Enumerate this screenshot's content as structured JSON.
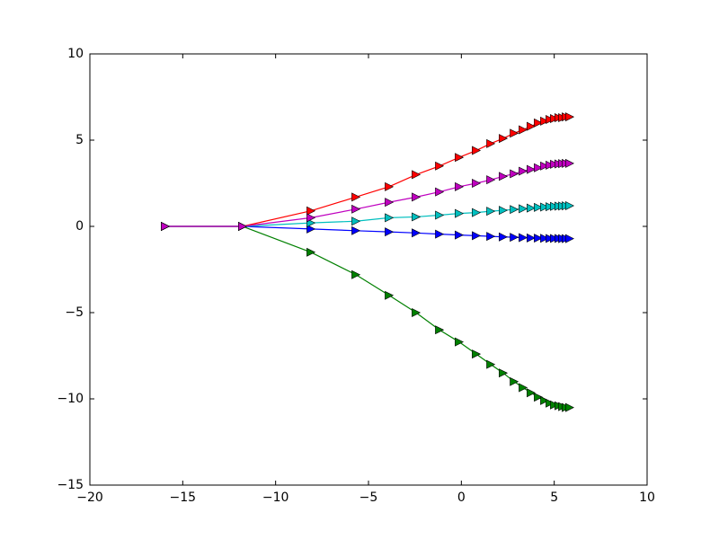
{
  "chart_data": {
    "type": "line",
    "x": [
      -15.94,
      -11.78,
      -8.1,
      -5.68,
      -3.89,
      -2.44,
      -1.18,
      -0.12,
      0.8,
      1.58,
      2.25,
      2.84,
      3.32,
      3.75,
      4.14,
      4.48,
      4.77,
      5.01,
      5.25,
      5.45,
      5.64,
      5.83
    ],
    "series": [
      {
        "color": "#0000ff",
        "values": [
          0,
          0,
          -0.15,
          -0.25,
          -0.32,
          -0.38,
          -0.45,
          -0.5,
          -0.54,
          -0.58,
          -0.61,
          -0.63,
          -0.65,
          -0.67,
          -0.68,
          -0.69,
          -0.7,
          -0.7,
          -0.7,
          -0.71,
          -0.71,
          -0.71
        ]
      },
      {
        "color": "#008000",
        "values": [
          0,
          0,
          -1.5,
          -2.8,
          -4.0,
          -5.0,
          -6.0,
          -6.7,
          -7.4,
          -8.0,
          -8.5,
          -9.0,
          -9.35,
          -9.65,
          -9.9,
          -10.1,
          -10.25,
          -10.35,
          -10.4,
          -10.45,
          -10.5,
          -10.5
        ]
      },
      {
        "color": "#ff0000",
        "values": [
          0,
          0,
          0.9,
          1.7,
          2.3,
          3.0,
          3.5,
          4.0,
          4.4,
          4.8,
          5.1,
          5.4,
          5.6,
          5.8,
          6.0,
          6.1,
          6.2,
          6.25,
          6.3,
          6.3,
          6.35,
          6.35
        ]
      },
      {
        "color": "#00bfbf",
        "values": [
          0,
          0,
          0.2,
          0.3,
          0.5,
          0.55,
          0.65,
          0.75,
          0.8,
          0.88,
          0.93,
          0.98,
          1.02,
          1.06,
          1.1,
          1.12,
          1.14,
          1.16,
          1.17,
          1.18,
          1.19,
          1.2
        ]
      },
      {
        "color": "#bf00bf",
        "values": [
          0,
          0,
          0.5,
          1.0,
          1.4,
          1.7,
          2.0,
          2.3,
          2.5,
          2.7,
          2.9,
          3.05,
          3.2,
          3.3,
          3.4,
          3.5,
          3.55,
          3.6,
          3.62,
          3.64,
          3.65,
          3.65
        ]
      }
    ],
    "xlim": [
      -20,
      10
    ],
    "ylim": [
      -15,
      10
    ],
    "xticks": [
      {
        "value": -20,
        "label": "−20"
      },
      {
        "value": -15,
        "label": "−15"
      },
      {
        "value": -10,
        "label": "−10"
      },
      {
        "value": -5,
        "label": "−5"
      },
      0,
      5,
      10
    ],
    "yticks": [
      {
        "value": -15,
        "label": "−15"
      },
      {
        "value": -10,
        "label": "−10"
      },
      {
        "value": -5,
        "label": "−5"
      },
      0,
      5,
      10
    ],
    "marker": "triangle-right",
    "grid": false
  }
}
